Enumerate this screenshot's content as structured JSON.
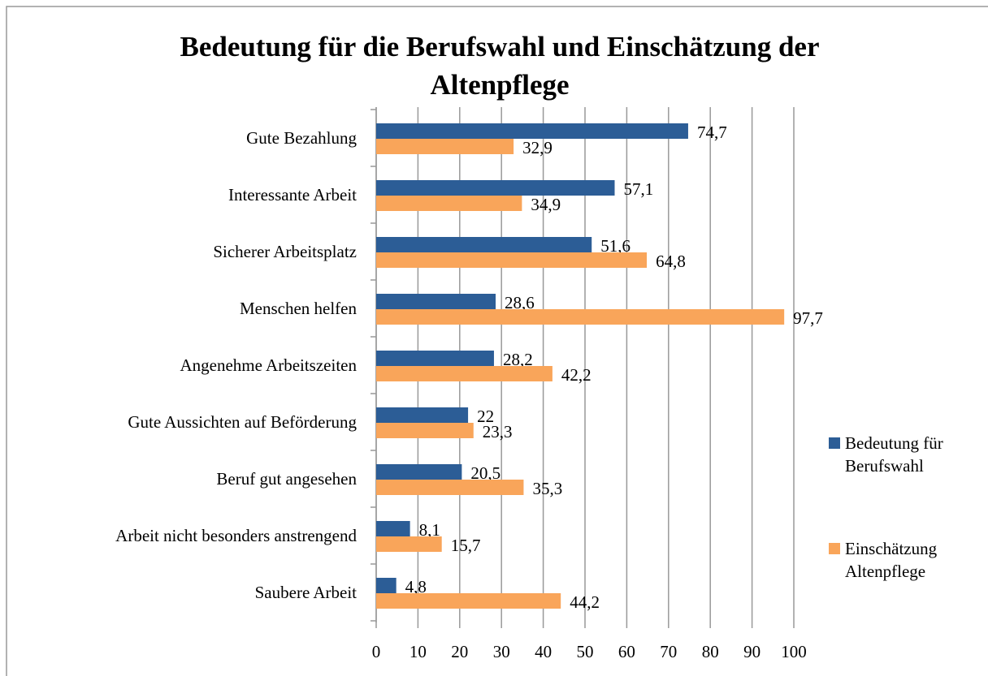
{
  "chart_data": {
    "type": "hbar",
    "title": "Bedeutung für die Berufswahl und Einschätzung der Altenpflege",
    "categories": [
      "Gute Bezahlung",
      "Interessante Arbeit",
      "Sicherer Arbeitsplatz",
      "Menschen helfen",
      "Angenehme Arbeitszeiten",
      "Gute Aussichten auf Beförderung",
      "Beruf gut angesehen",
      "Arbeit nicht besonders anstrengend",
      "Saubere Arbeit"
    ],
    "series": [
      {
        "name": "Bedeutung für Berufswahl",
        "color": "#2c5d96",
        "values": [
          74.7,
          57.1,
          51.6,
          28.6,
          28.2,
          22,
          20.5,
          8.1,
          4.8
        ],
        "value_labels": [
          "74,7",
          "57,1",
          "51,6",
          "28,6",
          "28,2",
          "22",
          "20,5",
          "8,1",
          "4,8"
        ]
      },
      {
        "name": "Einschätzung Altenpflege",
        "color": "#f9a55a",
        "values": [
          32.9,
          34.9,
          64.8,
          97.7,
          42.2,
          23.3,
          35.3,
          15.7,
          44.2
        ],
        "value_labels": [
          "32,9",
          "34,9",
          "64,8",
          "97,7",
          "42,2",
          "23,3",
          "35,3",
          "15,7",
          "44,2"
        ]
      }
    ],
    "xlim": [
      0,
      100
    ],
    "xticks": [
      0,
      10,
      20,
      30,
      40,
      50,
      60,
      70,
      80,
      90,
      100
    ],
    "grid": true,
    "legend": "right"
  }
}
